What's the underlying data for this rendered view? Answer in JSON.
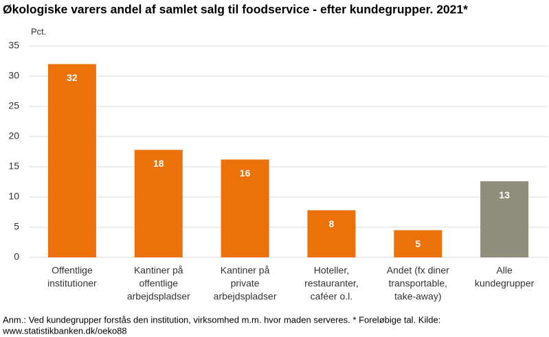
{
  "chart_data": {
    "type": "bar",
    "title": "Økologiske varers andel af samlet salg til foodservice - efter kundegrupper. 2021*",
    "y_label": "Pct.",
    "categories": [
      [
        "Offentlige",
        "institutioner"
      ],
      [
        "Kantiner på",
        "offentlige",
        "arbejdspladser"
      ],
      [
        "Kantiner på",
        "private",
        "arbejdspladser"
      ],
      [
        "Hoteller,",
        "restauranter,",
        "caféer o.l."
      ],
      [
        "Andet (fx diner",
        "transportable,",
        "take-away)"
      ],
      [
        "Alle",
        "kundegrupper"
      ]
    ],
    "values": [
      32,
      17.8,
      16.2,
      7.8,
      4.5,
      12.6
    ],
    "value_labels": [
      "32",
      "18",
      "16",
      "8",
      "5",
      "13"
    ],
    "colors": [
      "#ec7108",
      "#ec7108",
      "#ec7108",
      "#ec7108",
      "#ec7108",
      "#8f8e7c"
    ],
    "ylim": [
      0,
      35
    ],
    "yticks": [
      0,
      5,
      10,
      15,
      20,
      25,
      30,
      35
    ],
    "grid": true,
    "note": [
      "Anm.: Ved kundegrupper forstås den institution, virksomhed m.m. hvor maden serveres. * Foreløbige tal. Kilde:",
      "www.statistikbanken.dk/oeko88"
    ]
  }
}
